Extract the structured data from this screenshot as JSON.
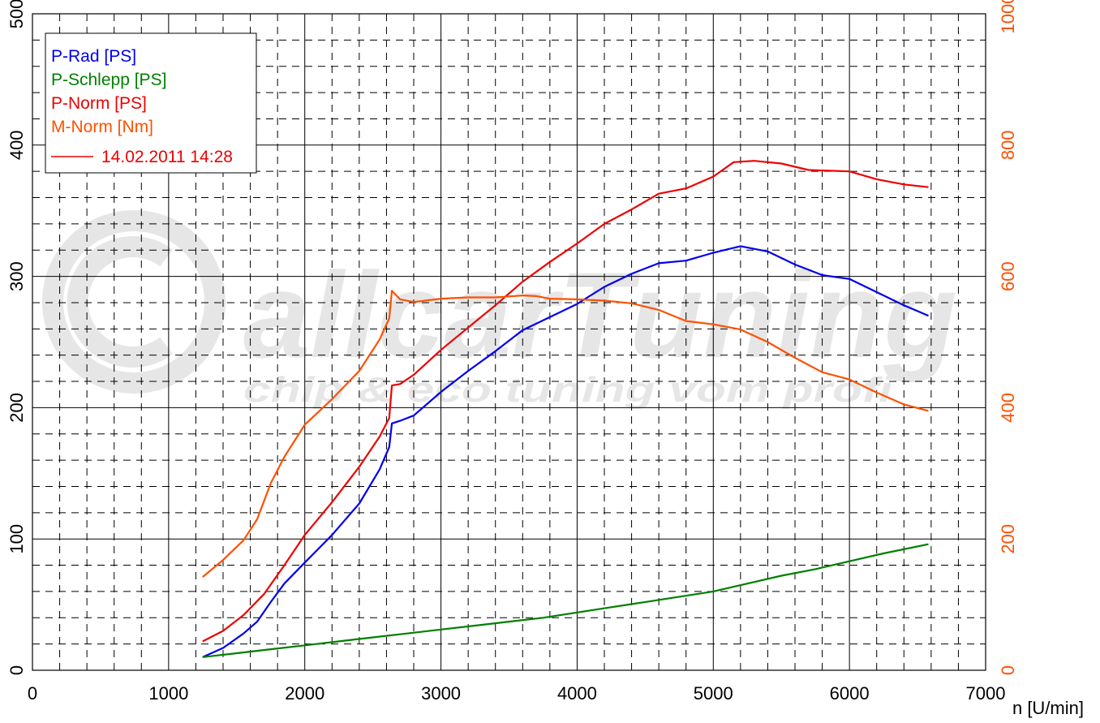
{
  "chart_data": {
    "type": "line",
    "x_axis": {
      "label": "n [U/min]",
      "range": [
        0,
        7000
      ],
      "ticks": [
        0,
        1000,
        2000,
        3000,
        4000,
        5000,
        6000,
        7000
      ]
    },
    "y_left_axis": {
      "range": [
        0,
        500
      ],
      "ticks": [
        0,
        100,
        200,
        300,
        400,
        500
      ]
    },
    "y_right_axis": {
      "range": [
        0,
        1000
      ],
      "ticks": [
        0,
        200,
        400,
        600,
        800,
        1000
      ],
      "color": "#ff5000"
    },
    "grid": true,
    "legend": {
      "placement": "top-left",
      "entries": [
        {
          "name": "P-Rad [PS]",
          "color": "#0000ee"
        },
        {
          "name": "P-Schlepp [PS]",
          "color": "#007f00"
        },
        {
          "name": "P-Norm [PS]",
          "color": "#ee0000"
        },
        {
          "name": "M-Norm [Nm]",
          "color": "#ff5000"
        }
      ],
      "run_label": "14.02.2011 14:28",
      "run_color": "#ee0000"
    },
    "watermark": {
      "brand": "allcarTuning",
      "tagline": "chip & eco tuning vom profi"
    },
    "series": [
      {
        "name": "P-Rad [PS]",
        "axis": "left",
        "color": "#0000ee",
        "points": [
          [
            1250,
            10
          ],
          [
            1400,
            17
          ],
          [
            1550,
            28
          ],
          [
            1650,
            37
          ],
          [
            1750,
            52
          ],
          [
            1850,
            66
          ],
          [
            2000,
            82
          ],
          [
            2200,
            103
          ],
          [
            2400,
            127
          ],
          [
            2550,
            153
          ],
          [
            2620,
            170
          ],
          [
            2640,
            188
          ],
          [
            2700,
            190
          ],
          [
            2800,
            194
          ],
          [
            3000,
            212
          ],
          [
            3200,
            228
          ],
          [
            3400,
            243
          ],
          [
            3600,
            259
          ],
          [
            3800,
            269
          ],
          [
            4000,
            279
          ],
          [
            4200,
            292
          ],
          [
            4400,
            302
          ],
          [
            4600,
            310
          ],
          [
            4800,
            312
          ],
          [
            5000,
            318
          ],
          [
            5200,
            323
          ],
          [
            5400,
            319
          ],
          [
            5600,
            309
          ],
          [
            5800,
            301
          ],
          [
            6000,
            298
          ],
          [
            6200,
            288
          ],
          [
            6400,
            278
          ],
          [
            6580,
            270
          ]
        ]
      },
      {
        "name": "P-Schlepp [PS]",
        "axis": "left",
        "color": "#007f00",
        "points": [
          [
            1250,
            10
          ],
          [
            1500,
            13
          ],
          [
            1750,
            16
          ],
          [
            2000,
            19
          ],
          [
            2250,
            22
          ],
          [
            2500,
            25
          ],
          [
            2750,
            28
          ],
          [
            3000,
            31
          ],
          [
            3250,
            34
          ],
          [
            3500,
            37
          ],
          [
            3750,
            40
          ],
          [
            4000,
            44
          ],
          [
            4250,
            48
          ],
          [
            4500,
            52
          ],
          [
            4750,
            56
          ],
          [
            5000,
            60
          ],
          [
            5250,
            66
          ],
          [
            5500,
            72
          ],
          [
            5750,
            77
          ],
          [
            6000,
            83
          ],
          [
            6250,
            89
          ],
          [
            6580,
            96
          ]
        ]
      },
      {
        "name": "P-Norm [PS]",
        "axis": "left",
        "color": "#ee0000",
        "points": [
          [
            1250,
            22
          ],
          [
            1400,
            30
          ],
          [
            1550,
            42
          ],
          [
            1700,
            58
          ],
          [
            1850,
            80
          ],
          [
            2000,
            103
          ],
          [
            2200,
            128
          ],
          [
            2400,
            155
          ],
          [
            2550,
            178
          ],
          [
            2620,
            192
          ],
          [
            2640,
            217
          ],
          [
            2700,
            218
          ],
          [
            2800,
            225
          ],
          [
            3000,
            244
          ],
          [
            3200,
            261
          ],
          [
            3400,
            278
          ],
          [
            3600,
            296
          ],
          [
            3800,
            311
          ],
          [
            4000,
            325
          ],
          [
            4200,
            340
          ],
          [
            4400,
            351
          ],
          [
            4600,
            363
          ],
          [
            4800,
            367
          ],
          [
            5000,
            376
          ],
          [
            5150,
            387
          ],
          [
            5300,
            388
          ],
          [
            5500,
            386
          ],
          [
            5700,
            381
          ],
          [
            6000,
            380
          ],
          [
            6200,
            374
          ],
          [
            6400,
            370
          ],
          [
            6580,
            368
          ]
        ]
      },
      {
        "name": "M-Norm [Nm]",
        "axis": "right",
        "color": "#ff5000",
        "points": [
          [
            1250,
            142
          ],
          [
            1400,
            168
          ],
          [
            1550,
            198
          ],
          [
            1650,
            230
          ],
          [
            1750,
            285
          ],
          [
            1850,
            325
          ],
          [
            2000,
            374
          ],
          [
            2200,
            413
          ],
          [
            2400,
            456
          ],
          [
            2550,
            504
          ],
          [
            2620,
            536
          ],
          [
            2640,
            578
          ],
          [
            2700,
            565
          ],
          [
            2800,
            561
          ],
          [
            3000,
            566
          ],
          [
            3200,
            568
          ],
          [
            3400,
            568
          ],
          [
            3600,
            571
          ],
          [
            3700,
            570
          ],
          [
            3800,
            566
          ],
          [
            4000,
            565
          ],
          [
            4200,
            563
          ],
          [
            4400,
            559
          ],
          [
            4600,
            549
          ],
          [
            4800,
            532
          ],
          [
            5000,
            527
          ],
          [
            5200,
            519
          ],
          [
            5400,
            500
          ],
          [
            5600,
            476
          ],
          [
            5800,
            454
          ],
          [
            6000,
            443
          ],
          [
            6200,
            423
          ],
          [
            6400,
            405
          ],
          [
            6580,
            395
          ]
        ]
      }
    ]
  }
}
